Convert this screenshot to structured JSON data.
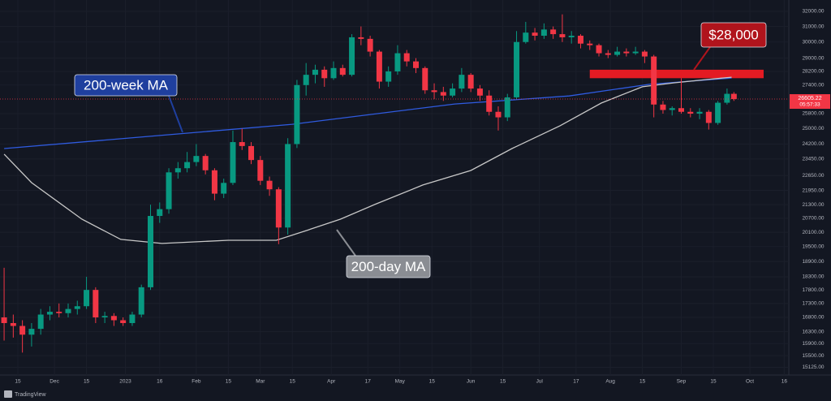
{
  "chart_data": {
    "type": "candlestick",
    "log_scale": true,
    "grid": true,
    "up_color": "#089981",
    "down_color": "#f23645",
    "xlim": [
      -7.8,
      337
    ],
    "ylim": [
      14880,
      32775
    ],
    "xticks": [
      {
        "value": 0,
        "label": "15"
      },
      {
        "value": 16,
        "label": "Dec"
      },
      {
        "value": 30,
        "label": "15"
      },
      {
        "value": 47,
        "label": "2023"
      },
      {
        "value": 62,
        "label": "16"
      },
      {
        "value": 78,
        "label": "Feb"
      },
      {
        "value": 92,
        "label": "15"
      },
      {
        "value": 106,
        "label": "Mar"
      },
      {
        "value": 120,
        "label": "15"
      },
      {
        "value": 137,
        "label": "Apr"
      },
      {
        "value": 153,
        "label": "17"
      },
      {
        "value": 167,
        "label": "May"
      },
      {
        "value": 181,
        "label": "15"
      },
      {
        "value": 198,
        "label": "Jun"
      },
      {
        "value": 212,
        "label": "15"
      },
      {
        "value": 228,
        "label": "Jul"
      },
      {
        "value": 244,
        "label": "17"
      },
      {
        "value": 259,
        "label": "Aug"
      },
      {
        "value": 273,
        "label": "15"
      },
      {
        "value": 290,
        "label": "Sep"
      },
      {
        "value": 304,
        "label": "15"
      },
      {
        "value": 320,
        "label": "Oct"
      },
      {
        "value": 335,
        "label": "16"
      }
    ],
    "yticks": [
      {
        "value": 32000,
        "label": "32000.00"
      },
      {
        "value": 31000,
        "label": "31000.00"
      },
      {
        "value": 30000,
        "label": "30000.00"
      },
      {
        "value": 29000,
        "label": "29000.00"
      },
      {
        "value": 28200,
        "label": "28200.00"
      },
      {
        "value": 27400,
        "label": "27400.00"
      },
      {
        "value": 25800,
        "label": "25800.00"
      },
      {
        "value": 25000,
        "label": "25000.00"
      },
      {
        "value": 24200,
        "label": "24200.00"
      },
      {
        "value": 23450,
        "label": "23450.00"
      },
      {
        "value": 22650,
        "label": "22650.00"
      },
      {
        "value": 21950,
        "label": "21950.00"
      },
      {
        "value": 21300,
        "label": "21300.00"
      },
      {
        "value": 20700,
        "label": "20700.00"
      },
      {
        "value": 20100,
        "label": "20100.00"
      },
      {
        "value": 19500,
        "label": "19500.00"
      },
      {
        "value": 18900,
        "label": "18900.00"
      },
      {
        "value": 18300,
        "label": "18300.00"
      },
      {
        "value": 17800,
        "label": "17800.00"
      },
      {
        "value": 17300,
        "label": "17300.00"
      },
      {
        "value": 16800,
        "label": "16800.00"
      },
      {
        "value": 16300,
        "label": "16300.00"
      },
      {
        "value": 15900,
        "label": "15900.00"
      },
      {
        "value": 15500,
        "label": "15500.00"
      },
      {
        "value": 15125,
        "label": "15125.00"
      }
    ],
    "candles": [
      [
        -6,
        16800,
        18650,
        16000,
        16600
      ],
      [
        -2,
        16600,
        16900,
        16100,
        16500
      ],
      [
        2,
        16500,
        16700,
        15600,
        16200
      ],
      [
        6,
        16200,
        16600,
        15800,
        16400
      ],
      [
        10,
        16400,
        17100,
        16200,
        16900
      ],
      [
        14,
        16900,
        17200,
        16700,
        17000
      ],
      [
        18,
        17000,
        17300,
        16800,
        16950
      ],
      [
        22,
        16950,
        17300,
        16800,
        17100
      ],
      [
        26,
        17100,
        17400,
        16900,
        17200
      ],
      [
        30,
        17200,
        18300,
        17100,
        17800
      ],
      [
        34,
        17800,
        17900,
        16600,
        16800
      ],
      [
        38,
        16800,
        17000,
        16600,
        16850
      ],
      [
        42,
        16850,
        16950,
        16500,
        16700
      ],
      [
        46,
        16700,
        16800,
        16500,
        16600
      ],
      [
        50,
        16600,
        17000,
        16500,
        16900
      ],
      [
        54,
        16900,
        18000,
        16800,
        17900
      ],
      [
        58,
        17900,
        21300,
        17800,
        20800
      ],
      [
        62,
        20800,
        21400,
        20500,
        21100
      ],
      [
        66,
        21100,
        23000,
        20900,
        22800
      ],
      [
        70,
        22800,
        23300,
        22500,
        23000
      ],
      [
        74,
        23000,
        23800,
        22800,
        23300
      ],
      [
        78,
        23300,
        24200,
        23100,
        23600
      ],
      [
        82,
        23600,
        23700,
        22700,
        22900
      ],
      [
        86,
        22900,
        23000,
        21500,
        21800
      ],
      [
        90,
        21800,
        22500,
        21600,
        22300
      ],
      [
        94,
        22300,
        24900,
        22200,
        24300
      ],
      [
        98,
        24300,
        25000,
        23900,
        24100
      ],
      [
        102,
        24100,
        24300,
        23200,
        23400
      ],
      [
        106,
        23400,
        23600,
        22200,
        22400
      ],
      [
        110,
        22400,
        22600,
        21700,
        22000
      ],
      [
        114,
        22000,
        22100,
        19600,
        20300
      ],
      [
        118,
        20300,
        24500,
        20000,
        24200
      ],
      [
        122,
        24200,
        27700,
        24000,
        27400
      ],
      [
        126,
        27400,
        28700,
        26800,
        28000
      ],
      [
        130,
        28000,
        28600,
        27500,
        28300
      ],
      [
        134,
        28300,
        28500,
        27300,
        27800
      ],
      [
        138,
        27800,
        28800,
        27700,
        28400
      ],
      [
        142,
        28400,
        28600,
        27900,
        28000
      ],
      [
        146,
        28000,
        30500,
        27900,
        30300
      ],
      [
        150,
        30300,
        31000,
        29800,
        30200
      ],
      [
        154,
        30200,
        30400,
        29100,
        29400
      ],
      [
        158,
        29400,
        29500,
        27200,
        27600
      ],
      [
        162,
        27600,
        28500,
        27300,
        28200
      ],
      [
        166,
        28200,
        29800,
        28000,
        29300
      ],
      [
        170,
        29300,
        29500,
        28500,
        28800
      ],
      [
        174,
        28800,
        29000,
        28100,
        28400
      ],
      [
        178,
        28400,
        28500,
        26900,
        27100
      ],
      [
        182,
        27100,
        27500,
        26600,
        27000
      ],
      [
        186,
        27000,
        27300,
        26500,
        26800
      ],
      [
        190,
        26800,
        27500,
        26700,
        27200
      ],
      [
        194,
        27200,
        28400,
        27000,
        28000
      ],
      [
        198,
        28000,
        28100,
        27000,
        27200
      ],
      [
        202,
        27200,
        27400,
        26500,
        26800
      ],
      [
        206,
        26800,
        27100,
        25700,
        25900
      ],
      [
        210,
        25900,
        26200,
        24900,
        25600
      ],
      [
        214,
        25600,
        26900,
        25400,
        26700
      ],
      [
        218,
        26700,
        30700,
        26600,
        30000
      ],
      [
        222,
        30000,
        31300,
        29900,
        30600
      ],
      [
        226,
        30600,
        30900,
        30100,
        30400
      ],
      [
        230,
        30400,
        31200,
        30200,
        30800
      ],
      [
        234,
        30800,
        31000,
        30200,
        30500
      ],
      [
        238,
        30500,
        31800,
        30000,
        30300
      ],
      [
        242,
        30300,
        30700,
        29900,
        30400
      ],
      [
        246,
        30400,
        30500,
        29600,
        29900
      ],
      [
        250,
        29900,
        30100,
        29500,
        29800
      ],
      [
        254,
        29800,
        29900,
        29100,
        29300
      ],
      [
        258,
        29300,
        29500,
        29000,
        29200
      ],
      [
        262,
        29200,
        29700,
        29100,
        29400
      ],
      [
        266,
        29400,
        29600,
        29100,
        29300
      ],
      [
        270,
        29300,
        29700,
        29200,
        29400
      ],
      [
        274,
        29400,
        29500,
        28700,
        29100
      ],
      [
        278,
        29100,
        29200,
        25600,
        26300
      ],
      [
        282,
        26300,
        26500,
        25800,
        26000
      ],
      [
        286,
        26000,
        26200,
        25700,
        26100
      ],
      [
        290,
        26100,
        27800,
        25800,
        25900
      ],
      [
        294,
        25900,
        26100,
        25600,
        25800
      ],
      [
        298,
        25800,
        26100,
        25500,
        25900
      ],
      [
        302,
        25900,
        26000,
        24950,
        25300
      ],
      [
        306,
        25300,
        26500,
        25200,
        26400
      ],
      [
        310,
        26400,
        27200,
        26300,
        26900
      ],
      [
        313,
        26900,
        27000,
        26500,
        26605.22
      ]
    ],
    "series": [
      {
        "color": "#2f5be0",
        "x": [
          -6,
          70,
          120,
          191,
          241,
          276,
          312
        ],
        "values": [
          23970,
          24720,
          25230,
          26330,
          26780,
          27440,
          27810
        ]
      },
      {
        "color": "#c8c8c8",
        "x": [
          -6,
          6,
          28,
          45,
          63,
          92,
          113,
          127,
          141,
          156,
          177,
          198,
          216,
          237,
          255,
          273,
          287,
          301,
          312
        ],
        "values": [
          23690,
          22310,
          20660,
          19800,
          19630,
          19760,
          19760,
          20200,
          20660,
          21310,
          22200,
          22890,
          23970,
          25150,
          26380,
          27300,
          27530,
          27720,
          27860
        ]
      }
    ],
    "zones": [
      {
        "x": [
          250,
          326
        ],
        "low": 27800,
        "high": 28300,
        "color": "#e31b23"
      }
    ],
    "annotations": [
      {
        "text": "200-week MA",
        "color": "#1f3f9e"
      },
      {
        "text": "200-day MA",
        "color": "#8a8d93"
      },
      {
        "text": "$28,000",
        "color": "#b0141c"
      }
    ],
    "countdown": "05:57:33",
    "branding": "TradingView"
  }
}
